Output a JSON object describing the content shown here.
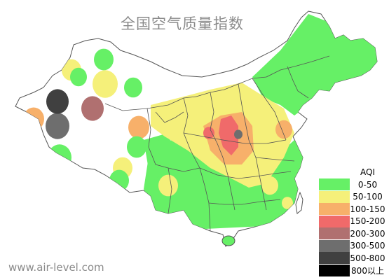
{
  "title": "全国空气质量指数",
  "website": "www.air-level.com",
  "legend": {
    "title": "AQI",
    "items": [
      {
        "label": "0-50",
        "color": "#66f066"
      },
      {
        "label": "50-100",
        "color": "#f5f07a"
      },
      {
        "label": "100-150",
        "color": "#f7b06a"
      },
      {
        "label": "150-200",
        "color": "#f06a6a"
      },
      {
        "label": "200-300",
        "color": "#b07070"
      },
      {
        "label": "300-500",
        "color": "#6e6e6e"
      },
      {
        "label": "500-800",
        "color": "#404040"
      },
      {
        "label": "800以上",
        "color": "#000000"
      }
    ]
  }
}
